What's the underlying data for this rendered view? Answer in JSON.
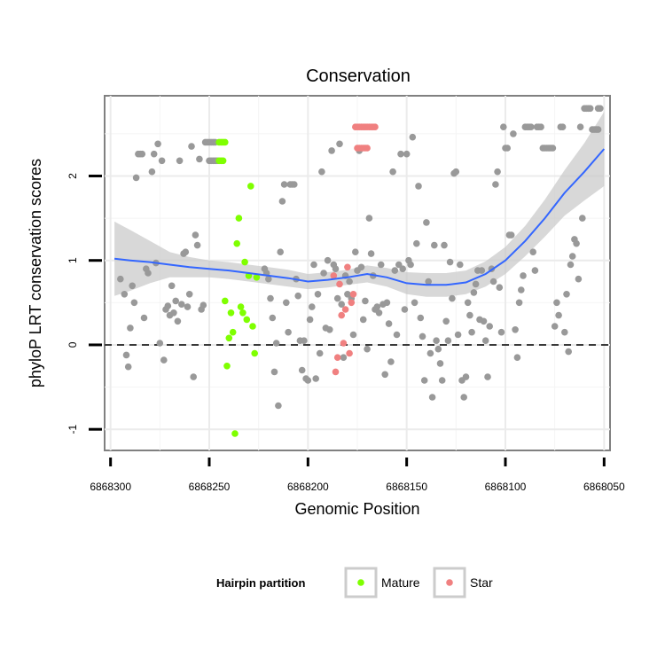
{
  "chart_data": {
    "type": "scatter",
    "title": "Conservation",
    "xlabel": "Genomic Position",
    "ylabel": "phyloP LRT conservation scores",
    "x_reversed": true,
    "xlim": [
      6868303,
      6868047
    ],
    "ylim": [
      -1.25,
      2.95
    ],
    "x_ticks": [
      6868300,
      6868250,
      6868200,
      6868150,
      6868100,
      6868050
    ],
    "x_tick_labels": [
      "6868300",
      "6868250",
      "6868200",
      "6868150",
      "6868100",
      "6868050"
    ],
    "y_ticks": [
      -1,
      0,
      1,
      2
    ],
    "y_tick_labels": [
      "-1",
      "0",
      "1",
      "2"
    ],
    "grid": true,
    "reference_line": {
      "y": 0,
      "style": "dashed"
    },
    "colors": {
      "Other": "#999999",
      "Mature": "#7fff00",
      "Star": "#f08080",
      "smooth": "#3366ff",
      "band": "#c8c8c8"
    },
    "legend": {
      "title": "Hairpin partition",
      "position": "bottom",
      "entries": [
        {
          "label": "Mature",
          "color": "#7fff00"
        },
        {
          "label": "Star",
          "color": "#f08080"
        }
      ]
    },
    "series": [
      {
        "group": "Other",
        "points": [
          [
            6868295,
            0.78
          ],
          [
            6868293,
            0.6
          ],
          [
            6868292,
            -0.12
          ],
          [
            6868291,
            -0.26
          ],
          [
            6868290,
            0.2
          ],
          [
            6868289,
            0.7
          ],
          [
            6868288,
            0.5
          ],
          [
            6868287,
            1.98
          ],
          [
            6868286,
            2.26
          ],
          [
            6868285,
            2.26
          ],
          [
            6868284,
            2.26
          ],
          [
            6868283,
            0.32
          ],
          [
            6868282,
            0.9
          ],
          [
            6868281,
            0.85
          ],
          [
            6868279,
            2.05
          ],
          [
            6868278,
            2.26
          ],
          [
            6868277,
            0.97
          ],
          [
            6868276,
            2.38
          ],
          [
            6868275,
            0.02
          ],
          [
            6868274,
            2.18
          ],
          [
            6868273,
            -0.18
          ],
          [
            6868272,
            0.42
          ],
          [
            6868271,
            0.46
          ],
          [
            6868270,
            0.35
          ],
          [
            6868269,
            0.7
          ],
          [
            6868268,
            0.38
          ],
          [
            6868267,
            0.52
          ],
          [
            6868266,
            0.28
          ],
          [
            6868265,
            2.18
          ],
          [
            6868264,
            0.48
          ],
          [
            6868263,
            1.08
          ],
          [
            6868262,
            1.1
          ],
          [
            6868261,
            0.45
          ],
          [
            6868260,
            0.6
          ],
          [
            6868259,
            2.35
          ],
          [
            6868258,
            -0.38
          ],
          [
            6868257,
            1.3
          ],
          [
            6868256,
            1.18
          ],
          [
            6868255,
            2.2
          ],
          [
            6868254,
            0.42
          ],
          [
            6868253,
            0.47
          ],
          [
            6868252,
            2.4
          ],
          [
            6868251,
            2.4
          ],
          [
            6868250,
            2.4
          ],
          [
            6868249,
            2.4
          ],
          [
            6868248,
            2.4
          ],
          [
            6868247,
            2.4
          ],
          [
            6868250,
            2.18
          ],
          [
            6868249,
            2.18
          ],
          [
            6868248,
            2.18
          ],
          [
            6868247,
            2.18
          ],
          [
            6868246,
            2.18
          ],
          [
            6868222,
            0.9
          ],
          [
            6868221,
            0.85
          ],
          [
            6868220,
            0.78
          ],
          [
            6868219,
            0.55
          ],
          [
            6868218,
            0.32
          ],
          [
            6868217,
            -0.32
          ],
          [
            6868216,
            0.02
          ],
          [
            6868215,
            -0.72
          ],
          [
            6868214,
            1.1
          ],
          [
            6868213,
            1.7
          ],
          [
            6868212,
            1.9
          ],
          [
            6868211,
            0.5
          ],
          [
            6868210,
            0.15
          ],
          [
            6868209,
            1.9
          ],
          [
            6868208,
            1.9
          ],
          [
            6868207,
            1.9
          ],
          [
            6868206,
            0.78
          ],
          [
            6868205,
            0.58
          ],
          [
            6868204,
            0.05
          ],
          [
            6868203,
            -0.3
          ],
          [
            6868202,
            0.05
          ],
          [
            6868201,
            -0.4
          ],
          [
            6868200,
            -0.42
          ],
          [
            6868199,
            0.3
          ],
          [
            6868198,
            0.45
          ],
          [
            6868197,
            0.95
          ],
          [
            6868196,
            -0.4
          ],
          [
            6868195,
            0.6
          ],
          [
            6868194,
            -0.1
          ],
          [
            6868193,
            2.05
          ],
          [
            6868192,
            0.85
          ],
          [
            6868191,
            0.2
          ],
          [
            6868190,
            1.0
          ],
          [
            6868189,
            0.18
          ],
          [
            6868188,
            2.3
          ],
          [
            6868187,
            0.95
          ],
          [
            6868186,
            0.9
          ],
          [
            6868185,
            0.55
          ],
          [
            6868184,
            2.38
          ],
          [
            6868183,
            0.48
          ],
          [
            6868182,
            -0.15
          ],
          [
            6868181,
            0.82
          ],
          [
            6868180,
            0.6
          ],
          [
            6868179,
            0.75
          ],
          [
            6868178,
            0.55
          ],
          [
            6868177,
            0.12
          ],
          [
            6868176,
            1.1
          ],
          [
            6868175,
            0.88
          ],
          [
            6868174,
            2.3
          ],
          [
            6868173,
            0.92
          ],
          [
            6868172,
            0.3
          ],
          [
            6868171,
            0.52
          ],
          [
            6868170,
            -0.05
          ],
          [
            6868169,
            1.5
          ],
          [
            6868168,
            1.08
          ],
          [
            6868167,
            0.82
          ],
          [
            6868166,
            0.42
          ],
          [
            6868165,
            0.45
          ],
          [
            6868164,
            0.38
          ],
          [
            6868163,
            0.95
          ],
          [
            6868162,
            0.48
          ],
          [
            6868161,
            -0.35
          ],
          [
            6868160,
            0.5
          ],
          [
            6868159,
            0.25
          ],
          [
            6868158,
            -0.2
          ],
          [
            6868157,
            2.05
          ],
          [
            6868156,
            0.88
          ],
          [
            6868155,
            0.12
          ],
          [
            6868154,
            0.95
          ],
          [
            6868153,
            2.26
          ],
          [
            6868152,
            0.9
          ],
          [
            6868151,
            0.42
          ],
          [
            6868150,
            2.26
          ],
          [
            6868149,
            1.0
          ],
          [
            6868148,
            0.95
          ],
          [
            6868147,
            2.46
          ],
          [
            6868146,
            0.5
          ],
          [
            6868145,
            1.2
          ],
          [
            6868144,
            1.88
          ],
          [
            6868143,
            0.32
          ],
          [
            6868142,
            0.1
          ],
          [
            6868141,
            -0.42
          ],
          [
            6868140,
            1.45
          ],
          [
            6868139,
            0.75
          ],
          [
            6868138,
            -0.1
          ],
          [
            6868137,
            -0.62
          ],
          [
            6868136,
            1.18
          ],
          [
            6868135,
            0.05
          ],
          [
            6868134,
            -0.05
          ],
          [
            6868133,
            -0.22
          ],
          [
            6868132,
            -0.42
          ],
          [
            6868131,
            1.18
          ],
          [
            6868130,
            0.28
          ],
          [
            6868129,
            0.05
          ],
          [
            6868128,
            0.98
          ],
          [
            6868127,
            0.55
          ],
          [
            6868126,
            2.03
          ],
          [
            6868125,
            2.05
          ],
          [
            6868124,
            0.12
          ],
          [
            6868123,
            0.95
          ],
          [
            6868122,
            -0.42
          ],
          [
            6868121,
            -0.62
          ],
          [
            6868120,
            -0.38
          ],
          [
            6868119,
            0.5
          ],
          [
            6868118,
            0.35
          ],
          [
            6868117,
            0.15
          ],
          [
            6868116,
            0.62
          ],
          [
            6868115,
            0.72
          ],
          [
            6868114,
            0.88
          ],
          [
            6868113,
            0.3
          ],
          [
            6868112,
            0.88
          ],
          [
            6868111,
            0.28
          ],
          [
            6868110,
            0.05
          ],
          [
            6868109,
            -0.38
          ],
          [
            6868108,
            0.22
          ],
          [
            6868107,
            0.9
          ],
          [
            6868106,
            0.75
          ],
          [
            6868105,
            1.9
          ],
          [
            6868104,
            2.05
          ],
          [
            6868103,
            0.68
          ],
          [
            6868102,
            0.15
          ],
          [
            6868101,
            2.58
          ],
          [
            6868100,
            2.33
          ],
          [
            6868099,
            2.33
          ],
          [
            6868098,
            1.3
          ],
          [
            6868097,
            1.3
          ],
          [
            6868096,
            2.5
          ],
          [
            6868095,
            0.18
          ],
          [
            6868094,
            -0.15
          ],
          [
            6868093,
            0.5
          ],
          [
            6868092,
            0.65
          ],
          [
            6868091,
            0.82
          ],
          [
            6868090,
            2.58
          ],
          [
            6868089,
            2.58
          ],
          [
            6868088,
            2.58
          ],
          [
            6868087,
            2.58
          ],
          [
            6868086,
            1.1
          ],
          [
            6868085,
            0.88
          ],
          [
            6868084,
            2.58
          ],
          [
            6868083,
            2.58
          ],
          [
            6868082,
            2.58
          ],
          [
            6868081,
            2.33
          ],
          [
            6868080,
            2.33
          ],
          [
            6868079,
            2.33
          ],
          [
            6868078,
            2.33
          ],
          [
            6868077,
            2.33
          ],
          [
            6868076,
            2.33
          ],
          [
            6868075,
            0.22
          ],
          [
            6868074,
            0.5
          ],
          [
            6868073,
            0.35
          ],
          [
            6868072,
            2.58
          ],
          [
            6868071,
            2.58
          ],
          [
            6868070,
            0.15
          ],
          [
            6868069,
            0.6
          ],
          [
            6868068,
            -0.08
          ],
          [
            6868067,
            0.95
          ],
          [
            6868066,
            1.05
          ],
          [
            6868065,
            1.25
          ],
          [
            6868064,
            1.2
          ],
          [
            6868063,
            0.78
          ],
          [
            6868062,
            2.58
          ],
          [
            6868061,
            1.5
          ],
          [
            6868060,
            2.8
          ],
          [
            6868059,
            2.8
          ],
          [
            6868058,
            2.8
          ],
          [
            6868057,
            2.8
          ],
          [
            6868056,
            2.55
          ],
          [
            6868055,
            2.55
          ],
          [
            6868054,
            2.55
          ],
          [
            6868053,
            2.55
          ],
          [
            6868052,
            2.8
          ],
          [
            6868053,
            2.8
          ]
        ]
      },
      {
        "group": "Mature",
        "points": [
          [
            6868245,
            2.4
          ],
          [
            6868244,
            2.4
          ],
          [
            6868243,
            2.4
          ],
          [
            6868242,
            2.4
          ],
          [
            6868245,
            2.18
          ],
          [
            6868244,
            2.18
          ],
          [
            6868243,
            2.18
          ],
          [
            6868242,
            0.52
          ],
          [
            6868241,
            -0.25
          ],
          [
            6868240,
            0.08
          ],
          [
            6868239,
            0.38
          ],
          [
            6868238,
            0.15
          ],
          [
            6868237,
            -1.05
          ],
          [
            6868236,
            1.2
          ],
          [
            6868235,
            1.5
          ],
          [
            6868234,
            0.45
          ],
          [
            6868233,
            0.38
          ],
          [
            6868232,
            0.98
          ],
          [
            6868231,
            0.3
          ],
          [
            6868230,
            0.82
          ],
          [
            6868229,
            1.88
          ],
          [
            6868228,
            0.22
          ],
          [
            6868227,
            -0.1
          ],
          [
            6868226,
            0.8
          ]
        ]
      },
      {
        "group": "Star",
        "points": [
          [
            6868187,
            0.82
          ],
          [
            6868186,
            -0.32
          ],
          [
            6868185,
            -0.15
          ],
          [
            6868184,
            0.72
          ],
          [
            6868183,
            0.35
          ],
          [
            6868182,
            0.02
          ],
          [
            6868181,
            0.42
          ],
          [
            6868180,
            0.92
          ],
          [
            6868179,
            -0.1
          ],
          [
            6868178,
            0.5
          ],
          [
            6868177,
            0.6
          ],
          [
            6868176,
            2.58
          ],
          [
            6868175,
            2.58
          ],
          [
            6868174,
            2.58
          ],
          [
            6868173,
            2.58
          ],
          [
            6868172,
            2.58
          ],
          [
            6868171,
            2.58
          ],
          [
            6868170,
            2.58
          ],
          [
            6868169,
            2.58
          ],
          [
            6868168,
            2.58
          ],
          [
            6868167,
            2.58
          ],
          [
            6868166,
            2.58
          ],
          [
            6868175,
            2.33
          ],
          [
            6868174,
            2.33
          ],
          [
            6868173,
            2.33
          ],
          [
            6868172,
            2.33
          ],
          [
            6868171,
            2.33
          ],
          [
            6868170,
            2.33
          ]
        ]
      }
    ],
    "smooth": {
      "x": [
        6868298,
        6868290,
        6868280,
        6868270,
        6868260,
        6868250,
        6868240,
        6868230,
        6868220,
        6868210,
        6868200,
        6868190,
        6868180,
        6868170,
        6868160,
        6868150,
        6868140,
        6868130,
        6868120,
        6868110,
        6868100,
        6868090,
        6868080,
        6868070,
        6868060,
        6868050
      ],
      "y": [
        1.02,
        1.0,
        0.98,
        0.95,
        0.92,
        0.9,
        0.88,
        0.85,
        0.82,
        0.79,
        0.75,
        0.77,
        0.8,
        0.84,
        0.8,
        0.73,
        0.71,
        0.71,
        0.74,
        0.84,
        1.0,
        1.23,
        1.5,
        1.8,
        2.05,
        2.32
      ],
      "ci": [
        0.44,
        0.36,
        0.25,
        0.15,
        0.12,
        0.1,
        0.1,
        0.1,
        0.1,
        0.1,
        0.09,
        0.09,
        0.09,
        0.1,
        0.11,
        0.13,
        0.14,
        0.14,
        0.14,
        0.15,
        0.16,
        0.18,
        0.22,
        0.27,
        0.34,
        0.44
      ]
    }
  }
}
